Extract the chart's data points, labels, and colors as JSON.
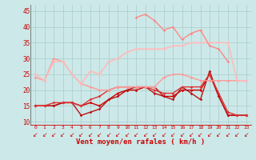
{
  "x": [
    0,
    1,
    2,
    3,
    4,
    5,
    6,
    7,
    8,
    9,
    10,
    11,
    12,
    13,
    14,
    15,
    16,
    17,
    18,
    19,
    20,
    21,
    22,
    23
  ],
  "xlabel": "Vent moyen/en rafales ( km/h )",
  "ylim": [
    9,
    47
  ],
  "yticks": [
    10,
    15,
    20,
    25,
    30,
    35,
    40,
    45
  ],
  "background_color": "#cce8e8",
  "grid_color": "#aacccc",
  "series": [
    {
      "y": [
        15,
        15,
        15,
        16,
        16,
        15,
        16,
        15,
        17,
        19,
        20,
        20,
        21,
        21,
        18,
        18,
        20,
        20,
        20,
        25,
        18,
        12,
        12,
        12
      ],
      "color": "#cc0000",
      "marker": "D",
      "markersize": 1.8,
      "linewidth": 1.0
    },
    {
      "y": [
        15,
        15,
        15,
        16,
        16,
        12,
        13,
        14,
        17,
        18,
        20,
        21,
        21,
        19,
        18,
        17,
        21,
        19,
        17,
        26,
        18,
        12,
        12,
        12
      ],
      "color": "#bb1111",
      "marker": "D",
      "markersize": 1.8,
      "linewidth": 1.0
    },
    {
      "y": [
        15,
        15,
        16,
        16,
        16,
        15,
        17,
        18,
        20,
        21,
        21,
        21,
        21,
        20,
        19,
        19,
        21,
        21,
        21,
        25,
        19,
        13,
        12,
        12
      ],
      "color": "#dd3333",
      "marker": "D",
      "markersize": 1.8,
      "linewidth": 1.0
    },
    {
      "y": [
        24,
        23,
        30,
        29,
        25,
        22,
        21,
        20,
        20,
        21,
        21,
        21,
        21,
        21,
        24,
        25,
        25,
        24,
        23,
        23,
        23,
        23,
        23,
        23
      ],
      "color": "#ff9999",
      "marker": "D",
      "markersize": 1.8,
      "linewidth": 1.0
    },
    {
      "y": [
        25,
        23,
        29,
        29,
        25,
        22,
        26,
        25,
        29,
        30,
        32,
        33,
        33,
        33,
        33,
        34,
        34,
        35,
        35,
        35,
        35,
        35,
        23,
        23
      ],
      "color": "#ffbbbb",
      "marker": "D",
      "markersize": 1.8,
      "linewidth": 1.2
    },
    {
      "y": [
        null,
        null,
        null,
        null,
        null,
        null,
        null,
        null,
        null,
        null,
        null,
        43,
        44,
        42,
        39,
        40,
        36,
        38,
        39,
        34,
        33,
        29,
        null,
        null
      ],
      "color": "#ff8888",
      "marker": "D",
      "markersize": 1.8,
      "linewidth": 1.0
    }
  ],
  "arrow_char": "↙",
  "arrow_color": "#cc0000",
  "arrow_fontsize": 5.5
}
